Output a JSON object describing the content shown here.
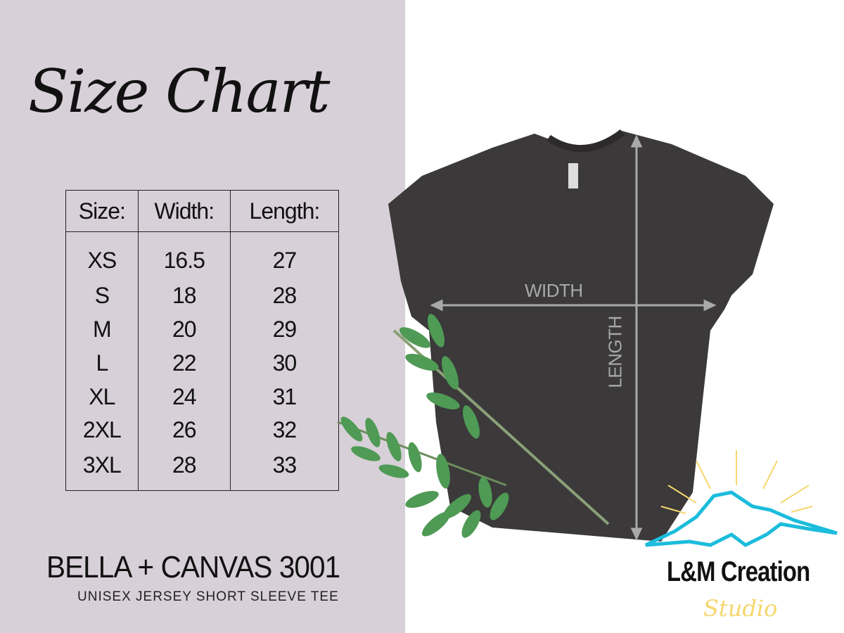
{
  "title": "Size Chart",
  "table": {
    "headers": [
      "Size:",
      "Width:",
      "Length:"
    ],
    "rows": [
      [
        "XS",
        "16.5",
        "27"
      ],
      [
        "S",
        "18",
        "28"
      ],
      [
        "M",
        "20",
        "29"
      ],
      [
        "L",
        "22",
        "30"
      ],
      [
        "XL",
        "24",
        "31"
      ],
      [
        "2XL",
        "26",
        "32"
      ],
      [
        "3XL",
        "28",
        "33"
      ]
    ]
  },
  "product": {
    "brand": "BELLA + CANVAS 3001",
    "description": "UNISEX JERSEY SHORT SLEEVE TEE"
  },
  "measurements": {
    "width_label": "WIDTH",
    "length_label": "LENGTH"
  },
  "logo": {
    "name": "L&M Creation",
    "script": "Studio",
    "colors": {
      "mountain": "#1bbcdc",
      "sun": "#f5d76e"
    }
  },
  "colors": {
    "background": "#d8d0d8",
    "shirt": "#3b3939"
  }
}
